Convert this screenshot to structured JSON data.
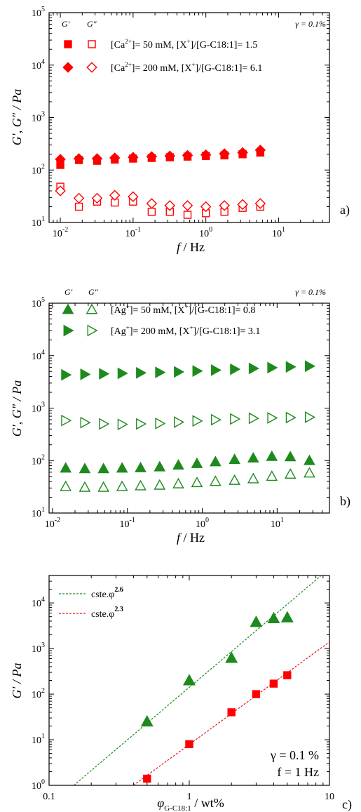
{
  "colors": {
    "red": "#ff0000",
    "green": "#1e8a1e",
    "fit_green": "#1e8a1e",
    "fit_red": "#e31a1c"
  },
  "chart_data": [
    {
      "panel": "a)",
      "type": "scatter",
      "xscale": "log",
      "yscale": "log",
      "xlim": [
        0.007,
        50
      ],
      "ylim": [
        10,
        100000
      ],
      "xlabel_main": "f",
      "xlabel_unit": " / Hz",
      "ylabel": "G′, G″ / Pa",
      "xticks": [
        "10-2",
        "10-1",
        "100",
        "101"
      ],
      "yticks": [
        "101",
        "102",
        "103",
        "104",
        "105"
      ],
      "legend_head": [
        "G′",
        "G″"
      ],
      "annotation": "γ = 0.1%",
      "series": [
        {
          "name": "[Ca2+]= 50 mM, [X+]/[G-C18:1]= 1.5",
          "ion": "Ca",
          "ion_charge": "2+",
          "conc": "= 50 mM, [X",
          "ratio": "]/[G-C18:1]= 1.5",
          "marker": "square",
          "x": [
            0.01,
            0.018,
            0.032,
            0.056,
            0.1,
            0.18,
            0.32,
            0.56,
            1.0,
            1.8,
            3.2,
            5.6
          ],
          "Gp": [
            125,
            155,
            150,
            158,
            165,
            170,
            175,
            180,
            185,
            190,
            200,
            215
          ],
          "Gpp": [
            48,
            20,
            25,
            24,
            25,
            16,
            16,
            14,
            15,
            16,
            19,
            20
          ]
        },
        {
          "name": "[Ca2+]= 200 mM, [X+]/[G-C18:1]= 6.1",
          "ion": "Ca",
          "ion_charge": "2+",
          "conc": "= 200 mM, [X",
          "ratio": "]/[G-C18:1]= 6.1",
          "marker": "diamond",
          "x": [
            0.01,
            0.018,
            0.032,
            0.056,
            0.1,
            0.18,
            0.32,
            0.56,
            1.0,
            1.8,
            3.2,
            5.6
          ],
          "Gp": [
            160,
            165,
            165,
            170,
            175,
            180,
            185,
            190,
            195,
            205,
            215,
            240
          ],
          "Gpp": [
            40,
            29,
            29,
            33,
            31,
            23,
            21,
            21,
            20,
            21,
            22,
            23
          ]
        }
      ]
    },
    {
      "panel": "b)",
      "type": "scatter",
      "xscale": "log",
      "yscale": "log",
      "xlim": [
        0.009,
        50
      ],
      "ylim": [
        10,
        100000
      ],
      "xlabel_main": "f",
      "xlabel_unit": " / Hz",
      "ylabel": "G′, G″ / Pa",
      "xticks": [
        "10-2",
        "10-1",
        "100",
        "101"
      ],
      "yticks": [
        "101",
        "102",
        "103",
        "104",
        "105"
      ],
      "legend_head": [
        "G′",
        "G″"
      ],
      "annotation": "γ = 0.1%",
      "series": [
        {
          "name": "[Ag+]= 50 mM, [X+]/[G-C18:1]= 0.8",
          "ion": "Ag",
          "ion_charge": "+",
          "conc": "= 50 mM, [X",
          "ratio": "]/[G-C18:1]= 0.8",
          "marker": "triangle-up",
          "x": [
            0.015,
            0.027,
            0.048,
            0.085,
            0.15,
            0.27,
            0.48,
            0.85,
            1.5,
            2.7,
            4.8,
            8.5,
            15,
            27
          ],
          "Gp": [
            72,
            70,
            70,
            72,
            73,
            76,
            82,
            88,
            95,
            105,
            112,
            120,
            118,
            100
          ],
          "Gpp": [
            32,
            31,
            31,
            32,
            33,
            34,
            36,
            38,
            40,
            42,
            45,
            50,
            55,
            58
          ]
        },
        {
          "name": "[Ag+]= 200 mM, [X+]/[G-C18:1]= 3.1",
          "ion": "Ag",
          "ion_charge": "+",
          "conc": "= 200 mM, [X",
          "ratio": "]/[G-C18:1]= 3.1",
          "marker": "triangle-right",
          "x": [
            0.015,
            0.027,
            0.048,
            0.085,
            0.15,
            0.27,
            0.48,
            0.85,
            1.5,
            2.7,
            4.8,
            8.5,
            15,
            27
          ],
          "Gp": [
            4300,
            4400,
            4500,
            4600,
            4700,
            4800,
            4900,
            5100,
            5300,
            5500,
            5700,
            5900,
            6100,
            6300
          ],
          "Gpp": [
            580,
            530,
            500,
            490,
            500,
            510,
            540,
            570,
            600,
            620,
            640,
            650,
            660,
            670
          ]
        }
      ]
    },
    {
      "panel": "c)",
      "type": "scatter",
      "xscale": "log",
      "yscale": "log",
      "xlim": [
        0.1,
        10
      ],
      "ylim": [
        1,
        40000
      ],
      "xlabel_main": "φ",
      "xlabel_sub": "G-C18:1",
      "xlabel_unit": " / wt%",
      "ylabel": "G′ / Pa",
      "xticks": [
        "0.1",
        "1",
        "10"
      ],
      "yticks": [
        "100",
        "101",
        "102",
        "103",
        "104"
      ],
      "annotation_1": "γ = 0.1 %",
      "annotation_2": "f = 1 Hz",
      "fits": [
        {
          "label": "cste.φ",
          "exponent": "2.6",
          "color": "green",
          "x": [
            0.15,
            10
          ],
          "y": [
            1,
            57000
          ]
        },
        {
          "label": "cste.φ",
          "exponent": "2.3",
          "color": "red",
          "x": [
            0.4,
            10
          ],
          "y": [
            1,
            1400
          ]
        }
      ],
      "series": [
        {
          "marker": "triangle-up",
          "color": "green",
          "x": [
            0.5,
            1,
            2,
            3,
            4,
            5
          ],
          "y": [
            25,
            200,
            620,
            3800,
            4600,
            4800
          ]
        },
        {
          "marker": "square",
          "color": "red",
          "x": [
            0.5,
            1,
            2,
            3,
            4,
            5
          ],
          "y": [
            1.4,
            8,
            40,
            100,
            170,
            260
          ]
        }
      ]
    }
  ]
}
